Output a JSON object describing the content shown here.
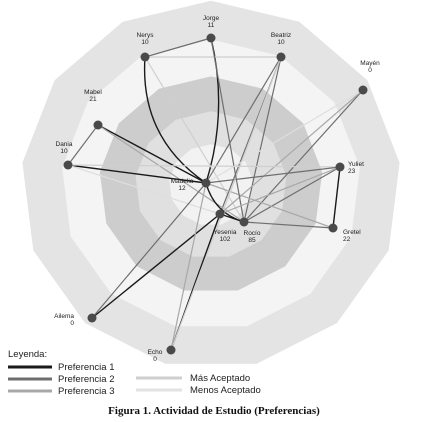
{
  "nodes": [
    {
      "name": "Jorge",
      "value": 11
    },
    {
      "name": "Nerys",
      "value": 10
    },
    {
      "name": "Beatriz",
      "value": 10
    },
    {
      "name": "Mayén",
      "value": 0
    },
    {
      "name": "Mabel",
      "value": 21
    },
    {
      "name": "Dania",
      "value": 10
    },
    {
      "name": "Yuliet",
      "value": 23
    },
    {
      "name": "Madelia",
      "value": 12
    },
    {
      "name": "Gretel",
      "value": 22
    },
    {
      "name": "Yesenia",
      "value": 102
    },
    {
      "name": "Rocío",
      "value": 85
    },
    {
      "name": "Ailema",
      "value": 0
    },
    {
      "name": "Echo",
      "value": 0
    }
  ],
  "legend": {
    "title": "Leyenda:",
    "preferences": [
      "Preferencia 1",
      "Preferencia 2",
      "Preferencia 3"
    ],
    "acceptance": [
      "Más Aceptado",
      "Menos Aceptado"
    ]
  },
  "caption": "Figura 1. Actividad de Estudio (Preferencias)"
}
